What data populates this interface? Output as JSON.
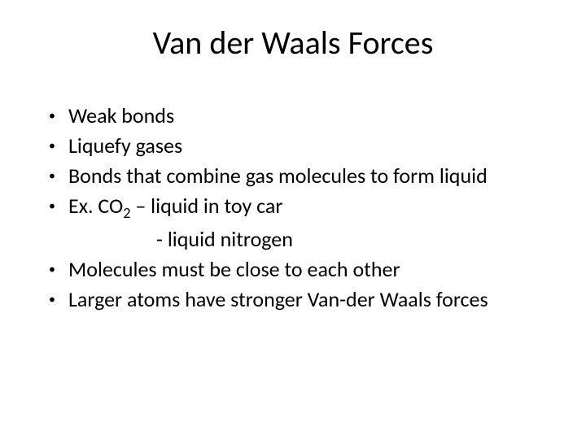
{
  "slide": {
    "title": "Van der Waals Forces",
    "title_fontsize": 40,
    "body_fontsize": 26,
    "background_color": "#ffffff",
    "text_color": "#000000",
    "bullets": [
      {
        "text": "Weak bonds"
      },
      {
        "text": "Liquefy gases"
      },
      {
        "text": "Bonds that combine gas molecules to form liquid"
      },
      {
        "text_prefix": "Ex. CO",
        "subscript": "2",
        "text_suffix": " – liquid in toy car"
      }
    ],
    "sub_line": "- liquid nitrogen",
    "bullets2": [
      {
        "text": "Molecules must be close to each other"
      },
      {
        "text": "Larger atoms have stronger Van-der Waals forces"
      }
    ]
  }
}
